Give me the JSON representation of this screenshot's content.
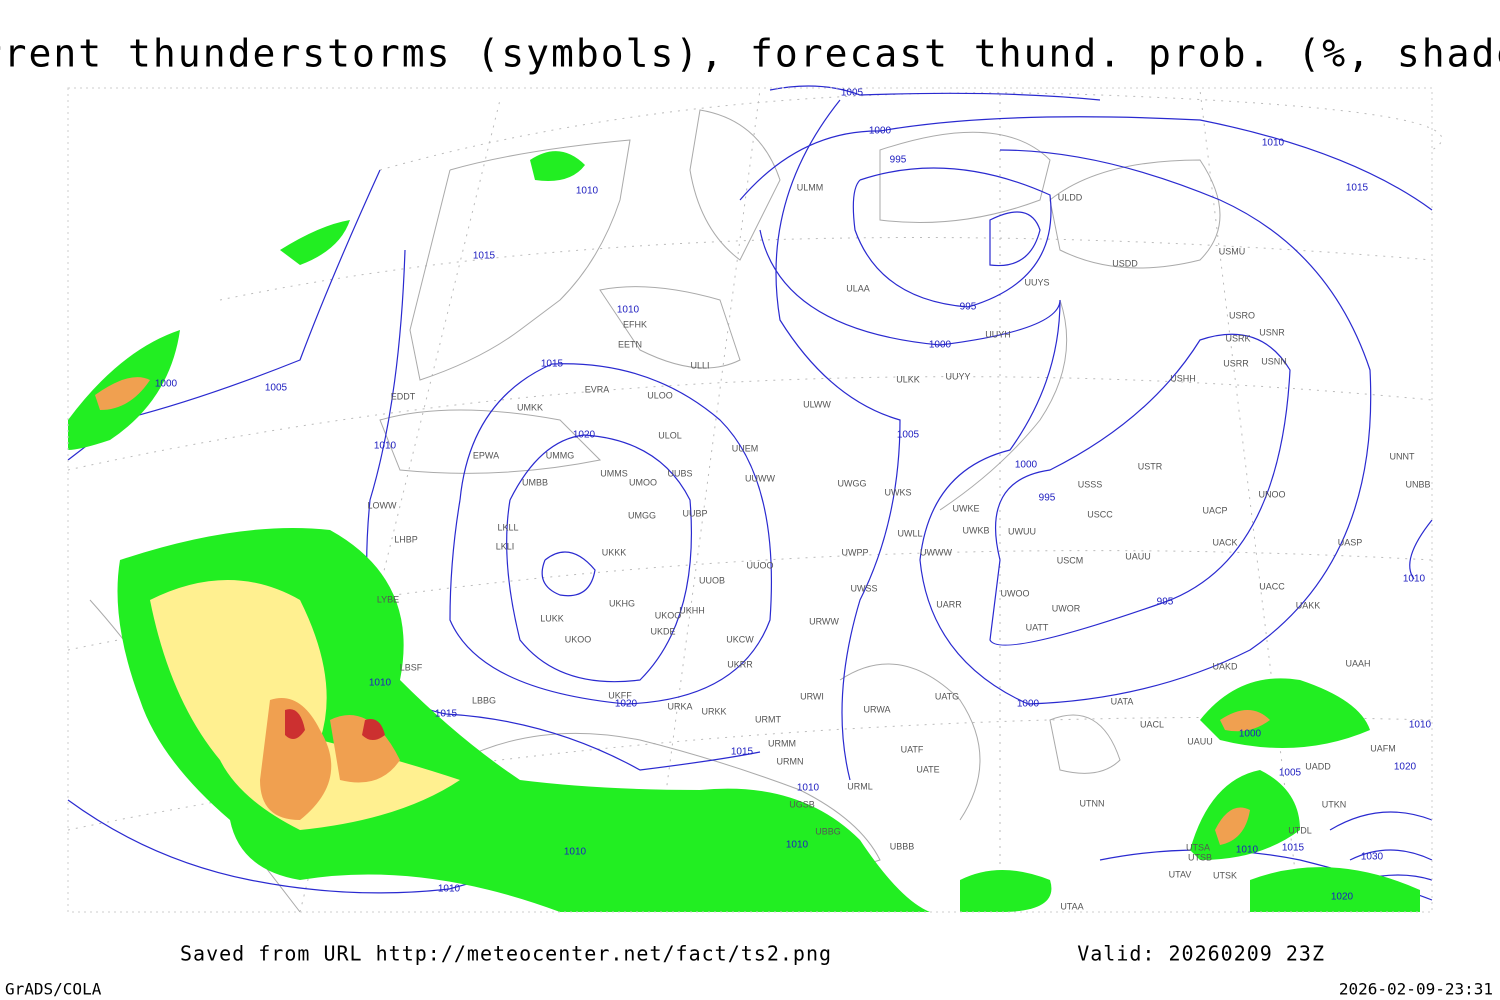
{
  "title": "Current thunderstorms (symbols), forecast thund. prob. (%, shaded)",
  "footer": {
    "source": "Saved from URL http://meteocenter.net/fact/ts2.png",
    "valid": "Valid: 20260209 23Z",
    "software": "GrADS/COLA",
    "timestamp": "2026-02-09-23:31"
  },
  "isobar_labels": [
    1005,
    1000,
    995,
    1010,
    1015,
    1010,
    1015,
    1010,
    995,
    1000,
    1015,
    1000,
    1005,
    1010,
    1020,
    1005,
    1000,
    995,
    1010,
    995,
    1020,
    1000,
    1010,
    1015,
    1015,
    1000,
    1010,
    1005,
    1010,
    1010,
    1010,
    1015,
    1020,
    1010,
    1030,
    1020,
    1010
  ],
  "stations": [
    "ULMM",
    "ULDD",
    "USDD",
    "USMU",
    "ULAA",
    "UUYS",
    "UUYH",
    "USRO",
    "USRK",
    "USNR",
    "USRR",
    "USNN",
    "USHH",
    "EFHK",
    "EETN",
    "ULLI",
    "EVRA",
    "ULOO",
    "ULKK",
    "UUYY",
    "EDDT",
    "UMKK",
    "ULOL",
    "ULWW",
    "UUEM",
    "EPWA",
    "UMMG",
    "UMMS",
    "UUBS",
    "UMOO",
    "UUWW",
    "UMBB",
    "UWGG",
    "UWKS",
    "USTR",
    "USSS",
    "UNOO",
    "UNNT",
    "UNBB",
    "LOWW",
    "UMGG",
    "UUBP",
    "UWKE",
    "USCC",
    "UACP",
    "LKLL",
    "UWKB",
    "UWUU",
    "UWLL",
    "UACK",
    "UASP",
    "LHBP",
    "LKLI",
    "UKKK",
    "UWPP",
    "UWWW",
    "USCM",
    "UAUU",
    "UUOO",
    "UUOB",
    "UWSS",
    "UACC",
    "UAKK",
    "LYBE",
    "UKHG",
    "UKHH",
    "UKOO",
    "LUKK",
    "UWOO",
    "UARR",
    "UWOR",
    "UATT",
    "UKDE",
    "UKCW",
    "URWW",
    "UKOO",
    "UKRR",
    "LBSF",
    "UAKD",
    "UAAH",
    "LBBG",
    "UKFF",
    "URKA",
    "URKK",
    "URWI",
    "UATG",
    "UATA",
    "URWA",
    "URMT",
    "UACL",
    "UAUU",
    "URMM",
    "UATF",
    "UATE",
    "URMN",
    "UADD",
    "UAFM",
    "UTNN",
    "URML",
    "UGSB",
    "UTKN",
    "UBBB",
    "UTDL",
    "UTSA",
    "UTSB",
    "UTAV",
    "UTSK",
    "UTAA",
    "UBBG"
  ]
}
